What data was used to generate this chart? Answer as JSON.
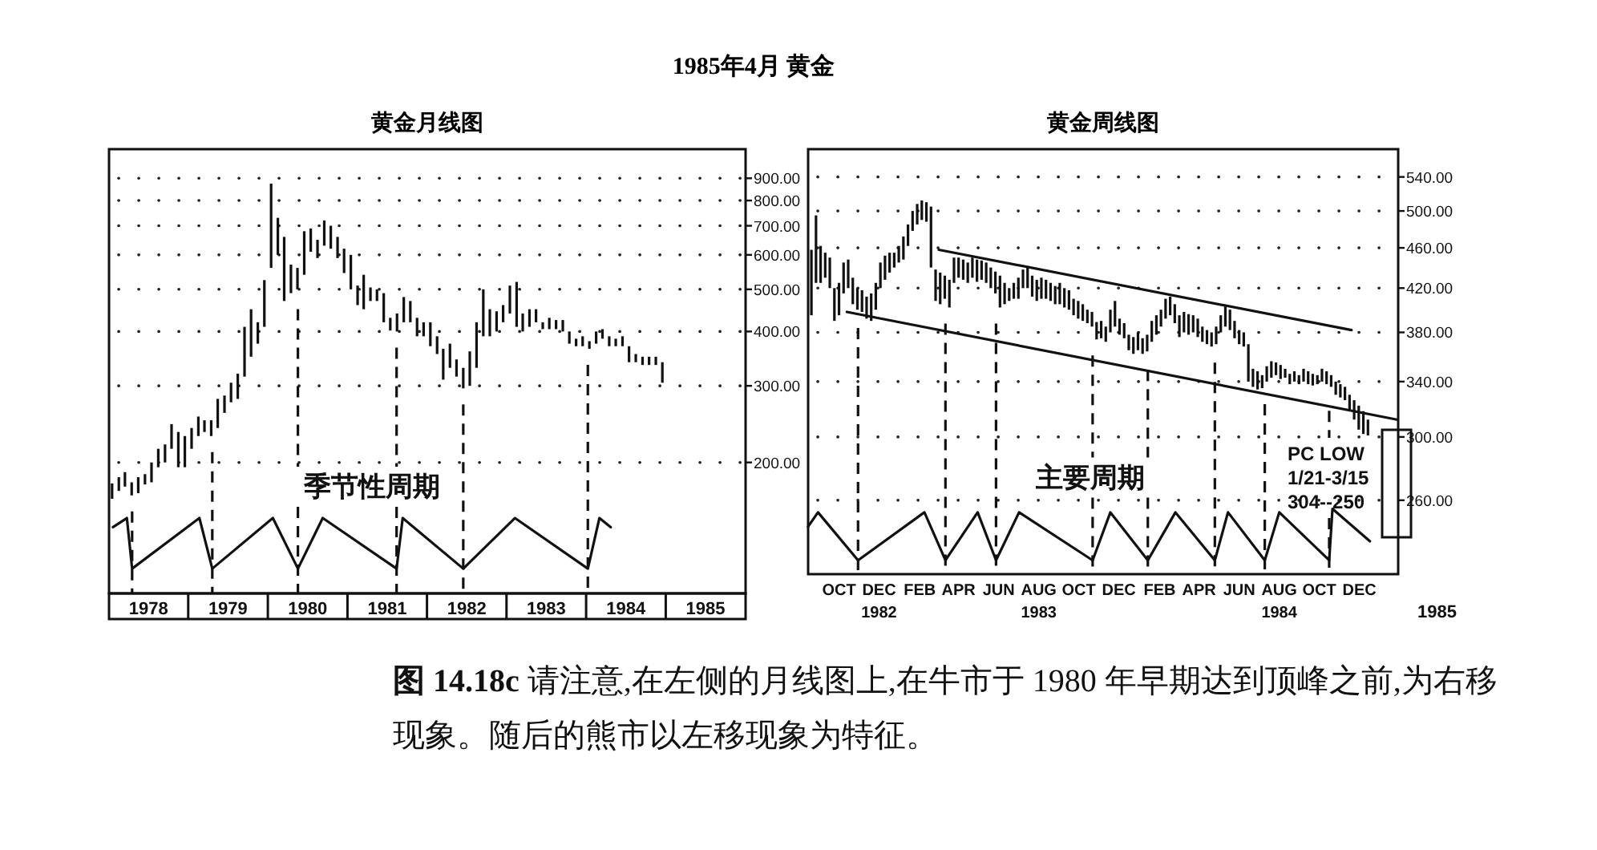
{
  "chart_data": [
    {
      "type": "other",
      "title": "1985年4月 黄金"
    },
    {
      "type": "bar",
      "title": "黄金月线图",
      "log": "y",
      "grid": "y",
      "xlim": [
        "1978-01-01",
        "1986-01-01"
      ],
      "ylim": [
        100,
        1050
      ],
      "xticks": [
        {
          "value": "1978-07-01",
          "label": "1978"
        },
        {
          "value": "1979-07-01",
          "label": "1979"
        },
        {
          "value": "1980-07-01",
          "label": "1980"
        },
        {
          "value": "1981-07-01",
          "label": "1981"
        },
        {
          "value": "1982-07-01",
          "label": "1982"
        },
        {
          "value": "1983-07-01",
          "label": "1983"
        },
        {
          "value": "1984-07-01",
          "label": "1984"
        },
        {
          "value": "1985-07-01",
          "label": "1985"
        }
      ],
      "yticks": [
        {
          "value": 200,
          "label": "200.00"
        },
        {
          "value": 300,
          "label": "300.00"
        },
        {
          "value": 400,
          "label": "400.00"
        },
        {
          "value": 500,
          "label": "500.00"
        },
        {
          "value": 600,
          "label": "600.00"
        },
        {
          "value": 700,
          "label": "700.00"
        },
        {
          "value": 800,
          "label": "800.00"
        },
        {
          "value": 900,
          "label": "900.00"
        }
      ],
      "x": [
        "1978-01",
        "1978-02",
        "1978-03",
        "1978-04",
        "1978-05",
        "1978-06",
        "1978-07",
        "1978-08",
        "1978-09",
        "1978-10",
        "1978-11",
        "1978-12",
        "1979-01",
        "1979-02",
        "1979-03",
        "1979-04",
        "1979-05",
        "1979-06",
        "1979-07",
        "1979-08",
        "1979-09",
        "1979-10",
        "1979-11",
        "1979-12",
        "1980-01",
        "1980-02",
        "1980-03",
        "1980-04",
        "1980-05",
        "1980-06",
        "1980-07",
        "1980-08",
        "1980-09",
        "1980-10",
        "1980-11",
        "1980-12",
        "1981-01",
        "1981-02",
        "1981-03",
        "1981-04",
        "1981-05",
        "1981-06",
        "1981-07",
        "1981-08",
        "1981-09",
        "1981-10",
        "1981-11",
        "1981-12",
        "1982-01",
        "1982-02",
        "1982-03",
        "1982-04",
        "1982-05",
        "1982-06",
        "1982-07",
        "1982-08",
        "1982-09",
        "1982-10",
        "1982-11",
        "1982-12",
        "1983-01",
        "1983-02",
        "1983-03",
        "1983-04",
        "1983-05",
        "1983-06",
        "1983-07",
        "1983-08",
        "1983-09",
        "1983-10",
        "1983-11",
        "1983-12",
        "1984-01",
        "1984-02",
        "1984-03",
        "1984-04",
        "1984-05",
        "1984-06",
        "1984-07",
        "1984-08",
        "1984-09",
        "1984-10",
        "1984-11",
        "1984-12"
      ],
      "series": [
        {
          "type": "bar",
          "color": "#111111",
          "base": [
            165,
            172,
            176,
            168,
            170,
            178,
            180,
            195,
            200,
            215,
            195,
            195,
            215,
            230,
            235,
            230,
            240,
            260,
            275,
            280,
            315,
            350,
            375,
            410,
            560,
            600,
            470,
            490,
            500,
            540,
            610,
            590,
            630,
            620,
            590,
            545,
            500,
            460,
            450,
            470,
            470,
            420,
            402,
            400,
            420,
            420,
            390,
            390,
            370,
            355,
            310,
            330,
            315,
            296,
            300,
            330,
            390,
            390,
            400,
            420,
            440,
            410,
            400,
            410,
            420,
            405,
            405,
            405,
            400,
            375,
            370,
            370,
            365,
            375,
            385,
            370,
            370,
            370,
            340,
            340,
            335,
            335,
            335,
            305
          ],
          "values": [
            14,
            13,
            14,
            12,
            15,
            10,
            20,
            20,
            20,
            30,
            40,
            35,
            25,
            25,
            15,
            20,
            40,
            25,
            30,
            40,
            95,
            100,
            45,
            115,
            315,
            130,
            190,
            80,
            60,
            140,
            80,
            60,
            90,
            80,
            70,
            75,
            100,
            50,
            90,
            35,
            30,
            70,
            28,
            40,
            60,
            50,
            40,
            30,
            50,
            35,
            55,
            45,
            30,
            34,
            60,
            90,
            110,
            60,
            45,
            40,
            70,
            110,
            40,
            40,
            30,
            15,
            25,
            20,
            25,
            25,
            15,
            20,
            15,
            25,
            20,
            20,
            15,
            20,
            30,
            15,
            15,
            15,
            15,
            35
          ]
        },
        {
          "type": "line",
          "name": "季节性周期",
          "color": "#111111",
          "x": [
            "1978-01-19",
            "1978-03-24",
            "1978-04-17",
            "1979-02-20",
            "1979-04-20",
            "1980-01-23",
            "1980-05-17",
            "1980-09-08",
            "1981-08-13",
            "1981-09-10",
            "1982-06-15",
            "1983-02-07",
            "1984-01-08",
            "1984-03-01",
            "1984-04-22"
          ],
          "values": [
            142,
            149,
            114,
            149,
            114,
            149,
            114,
            149,
            114,
            149,
            114,
            149,
            114,
            149,
            142
          ]
        }
      ],
      "ref_lines": [
        {
          "axis": "x",
          "value": "1978-04-17",
          "line_style": "dashed"
        },
        {
          "axis": "x",
          "value": "1979-04-20",
          "line_style": "dashed"
        },
        {
          "axis": "x",
          "value": "1980-05-17",
          "line_style": "dashed"
        },
        {
          "axis": "x",
          "value": "1981-08-13",
          "line_style": "dashed"
        },
        {
          "axis": "x",
          "value": "1982-06-15",
          "line_style": "dashed"
        },
        {
          "axis": "x",
          "value": "1984-01-08",
          "line_style": "dashed"
        }
      ]
    },
    {
      "type": "bar",
      "title": "黄金周线图",
      "log": "y",
      "grid": "y",
      "xlim": [
        "1982-08-15",
        "1985-01-29"
      ],
      "ylim": [
        220,
        575
      ],
      "xticks": [
        {
          "value": "1982-10-01",
          "label": "OCT"
        },
        {
          "value": "1982-12-01",
          "label": "DEC\n1982"
        },
        {
          "value": "1983-02-01",
          "label": "FEB"
        },
        {
          "value": "1983-04-01",
          "label": "APR"
        },
        {
          "value": "1983-06-01",
          "label": "JUN"
        },
        {
          "value": "1983-08-01",
          "label": "AUG\n1983"
        },
        {
          "value": "1983-10-01",
          "label": "OCT"
        },
        {
          "value": "1983-12-01",
          "label": "DEC"
        },
        {
          "value": "1984-02-01",
          "label": "FEB"
        },
        {
          "value": "1984-04-01",
          "label": "APR"
        },
        {
          "value": "1984-06-01",
          "label": "JUN"
        },
        {
          "value": "1984-08-01",
          "label": "AUG\n1984"
        },
        {
          "value": "1984-10-01",
          "label": "OCT"
        },
        {
          "value": "1984-12-01",
          "label": "DEC"
        }
      ],
      "yticks": [
        {
          "value": 260,
          "label": "260.00"
        },
        {
          "value": 300,
          "label": "300.00"
        },
        {
          "value": 340,
          "label": "340.00"
        },
        {
          "value": 380,
          "label": "380.00"
        },
        {
          "value": 420,
          "label": "420.00"
        },
        {
          "value": 460,
          "label": "460.00"
        },
        {
          "value": 500,
          "label": "500.00"
        },
        {
          "value": 540,
          "label": "540.00"
        }
      ],
      "x": [
        "1982-08-20",
        "1982-08-27",
        "1982-09-03",
        "1982-09-10",
        "1982-09-17",
        "1982-09-24",
        "1982-10-01",
        "1982-10-08",
        "1982-10-15",
        "1982-10-22",
        "1982-10-29",
        "1982-11-05",
        "1982-11-12",
        "1982-11-19",
        "1982-11-26",
        "1982-12-03",
        "1982-12-10",
        "1982-12-17",
        "1982-12-24",
        "1982-12-31",
        "1983-01-07",
        "1983-01-14",
        "1983-01-21",
        "1983-01-28",
        "1983-02-04",
        "1983-02-11",
        "1983-02-18",
        "1983-02-25",
        "1983-03-04",
        "1983-03-11",
        "1983-03-18",
        "1983-03-25",
        "1983-04-01",
        "1983-04-08",
        "1983-04-15",
        "1983-04-22",
        "1983-04-29",
        "1983-05-06",
        "1983-05-13",
        "1983-05-20",
        "1983-05-27",
        "1983-06-03",
        "1983-06-10",
        "1983-06-17",
        "1983-06-24",
        "1983-07-01",
        "1983-07-08",
        "1983-07-15",
        "1983-07-22",
        "1983-07-29",
        "1983-08-05",
        "1983-08-12",
        "1983-08-19",
        "1983-08-26",
        "1983-09-02",
        "1983-09-09",
        "1983-09-16",
        "1983-09-23",
        "1983-09-30",
        "1983-10-07",
        "1983-10-14",
        "1983-10-21",
        "1983-10-28",
        "1983-11-04",
        "1983-11-11",
        "1983-11-18",
        "1983-11-25",
        "1983-12-02",
        "1983-12-09",
        "1983-12-16",
        "1983-12-23",
        "1983-12-30",
        "1984-01-06",
        "1984-01-13",
        "1984-01-20",
        "1984-01-27",
        "1984-02-03",
        "1984-02-10",
        "1984-02-17",
        "1984-02-24",
        "1984-03-02",
        "1984-03-09",
        "1984-03-16",
        "1984-03-23",
        "1984-03-30",
        "1984-04-06",
        "1984-04-13",
        "1984-04-20",
        "1984-04-27",
        "1984-05-04",
        "1984-05-11",
        "1984-05-18",
        "1984-05-25",
        "1984-06-01",
        "1984-06-08",
        "1984-06-15",
        "1984-06-22",
        "1984-06-29",
        "1984-07-06",
        "1984-07-13",
        "1984-07-20",
        "1984-07-27",
        "1984-08-03",
        "1984-08-10",
        "1984-08-17",
        "1984-08-24",
        "1984-08-31",
        "1984-09-07",
        "1984-09-14",
        "1984-09-21",
        "1984-09-28",
        "1984-10-05",
        "1984-10-12",
        "1984-10-19",
        "1984-10-26",
        "1984-11-02",
        "1984-11-09",
        "1984-11-16",
        "1984-11-23",
        "1984-11-30",
        "1984-12-07",
        "1984-12-14"
      ],
      "series": [
        {
          "type": "bar",
          "color": "#111111",
          "base": [
            395,
            425,
            425,
            430,
            420,
            390,
            395,
            415,
            420,
            405,
            400,
            398,
            392,
            390,
            400,
            420,
            428,
            435,
            440,
            445,
            448,
            462,
            478,
            485,
            490,
            488,
            440,
            408,
            405,
            410,
            402,
            425,
            430,
            428,
            425,
            430,
            426,
            428,
            425,
            420,
            415,
            402,
            405,
            408,
            410,
            410,
            420,
            420,
            412,
            408,
            410,
            410,
            408,
            405,
            405,
            402,
            400,
            395,
            392,
            390,
            388,
            385,
            374,
            375,
            372,
            380,
            385,
            378,
            375,
            365,
            362,
            365,
            362,
            364,
            372,
            378,
            385,
            392,
            395,
            388,
            376,
            380,
            378,
            380,
            376,
            372,
            370,
            368,
            370,
            380,
            385,
            382,
            375,
            370,
            368,
            340,
            336,
            334,
            335,
            340,
            343,
            345,
            342,
            343,
            338,
            340,
            338,
            340,
            338,
            337,
            338,
            340,
            338,
            336,
            330,
            328,
            326,
            318,
            312,
            305,
            302,
            301
          ],
          "values": [
            63,
            70,
            37,
            25,
            30,
            30,
            30,
            30,
            28,
            25,
            20,
            20,
            20,
            25,
            25,
            25,
            24,
            20,
            15,
            17,
            24,
            23,
            22,
            23,
            22,
            22,
            65,
            30,
            30,
            22,
            26,
            25,
            20,
            20,
            20,
            20,
            22,
            19,
            20,
            20,
            21,
            30,
            20,
            12,
            15,
            20,
            18,
            20,
            20,
            20,
            20,
            18,
            17,
            17,
            20,
            18,
            18,
            15,
            16,
            15,
            12,
            13,
            15,
            15,
            13,
            20,
            23,
            14,
            13,
            13,
            14,
            15,
            13,
            14,
            18,
            17,
            15,
            18,
            17,
            17,
            19,
            18,
            18,
            15,
            16,
            13,
            12,
            12,
            15,
            15,
            18,
            18,
            15,
            12,
            12,
            30,
            14,
            14,
            10,
            12,
            13,
            10,
            11,
            7,
            8,
            8,
            7,
            10,
            10,
            9,
            7,
            10,
            10,
            9,
            10,
            10,
            10,
            12,
            14,
            17,
            16,
            11
          ]
        },
        {
          "type": "line",
          "name": "主要周期",
          "color": "#111111",
          "x": [
            "1982-08-15",
            "1982-08-30",
            "1982-10-30",
            "1983-02-08",
            "1983-03-12",
            "1983-04-30",
            "1983-05-28",
            "1983-07-02",
            "1983-10-22",
            "1983-11-18",
            "1984-01-14",
            "1984-02-25",
            "1984-04-25",
            "1984-05-15",
            "1984-07-10",
            "1984-08-01",
            "1984-10-16",
            "1984-10-21",
            "1984-12-17"
          ],
          "values": [
            245,
            253,
            227,
            253,
            227,
            253,
            227,
            253,
            227,
            253,
            227,
            253,
            227,
            253,
            227,
            253,
            227,
            255,
            237
          ]
        },
        {
          "type": "line",
          "color": "#111111",
          "x": [
            "1983-03-02",
            "1984-11-19"
          ],
          "values": [
            458,
            382
          ]
        },
        {
          "type": "line",
          "color": "#111111",
          "x": [
            "1982-10-13",
            "1985-01-27"
          ],
          "values": [
            398,
            312
          ]
        }
      ],
      "ref_lines": [
        {
          "axis": "x",
          "value": "1982-10-30",
          "line_style": "dashed"
        },
        {
          "axis": "x",
          "value": "1983-03-12",
          "line_style": "dashed"
        },
        {
          "axis": "x",
          "value": "1983-05-28",
          "line_style": "dashed"
        },
        {
          "axis": "x",
          "value": "1983-10-22",
          "line_style": "dashed"
        },
        {
          "axis": "x",
          "value": "1984-01-14",
          "line_style": "dashed"
        },
        {
          "axis": "x",
          "value": "1984-04-25",
          "line_style": "dashed"
        },
        {
          "axis": "x",
          "value": "1984-07-10",
          "line_style": "dashed"
        },
        {
          "axis": "x",
          "value": "1984-10-16",
          "line_style": "dashed"
        }
      ],
      "annotations": [
        "PC LOW\n1/21-3/15\n304--250",
        "1985"
      ]
    },
    {
      "type": "other",
      "annotations": [
        "**图 14.18c**  请注意,在左侧的月线图上,在牛市于 1980 年早期达到顶峰之前,为右移现象。随后的熊市以左移现象为特征。"
      ]
    }
  ]
}
